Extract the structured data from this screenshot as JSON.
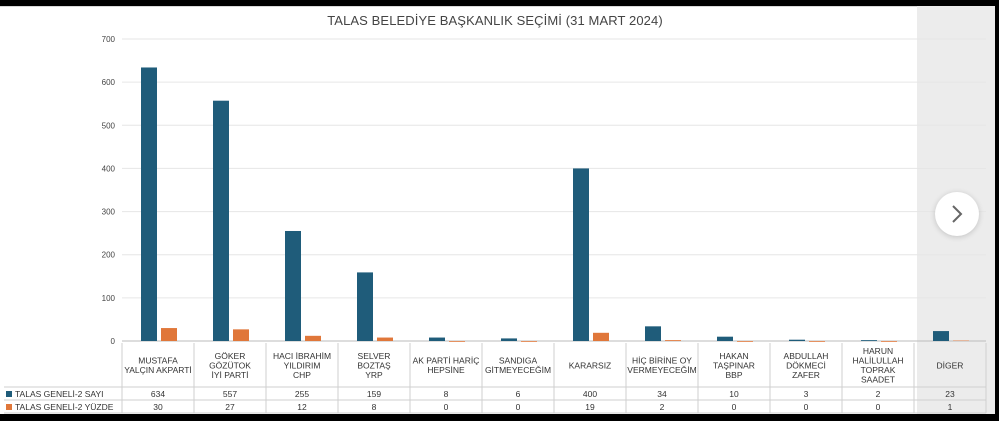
{
  "chart_data": {
    "type": "bar",
    "title": "TALAS BELEDİYE BAŞKANLIK SEÇİMİ (31 MART 2024)",
    "xlabel": "",
    "ylabel": "",
    "ylim": [
      0,
      700
    ],
    "yticks": [
      0,
      100,
      200,
      300,
      400,
      500,
      600,
      700
    ],
    "grid": true,
    "legend": "data-table-left",
    "categories": [
      [
        "MUSTAFA",
        "YALÇIN AKPARTİ"
      ],
      [
        "GÖKER",
        "GÖZÜTOK",
        "İYİ PARTİ"
      ],
      [
        "HACI İBRAHİM",
        "YILDIRIM",
        "CHP"
      ],
      [
        "SELVER",
        "BOZTAŞ",
        "YRP"
      ],
      [
        "AK PARTİ HARİÇ",
        "HEPSİNE"
      ],
      [
        "SANDIGA",
        "GİTMEYECEĞİM"
      ],
      [
        "KARARSIZ"
      ],
      [
        "HİÇ BİRİNE OY",
        "VERMEYECEĞİM"
      ],
      [
        "HAKAN",
        "TAŞPINAR",
        "BBP"
      ],
      [
        "ABDULLAH",
        "DÖKMECİ",
        "ZAFER"
      ],
      [
        "HARUN",
        "HALİLULLAH",
        "TOPRAK",
        "SAADET"
      ],
      [
        "DİGER"
      ]
    ],
    "series": [
      {
        "name": "TALAS GENELİ-2 SAYI",
        "color": "#1f5c7a",
        "values": [
          634,
          557,
          255,
          159,
          8,
          6,
          400,
          34,
          10,
          3,
          2,
          23
        ]
      },
      {
        "name": "TALAS GENELİ-2 YÜZDE",
        "color": "#e0773a",
        "values": [
          30,
          27,
          12,
          8,
          0,
          0,
          19,
          2,
          0,
          0,
          0,
          1
        ]
      }
    ]
  },
  "ui": {
    "next_icon": "chevron-right-icon"
  }
}
